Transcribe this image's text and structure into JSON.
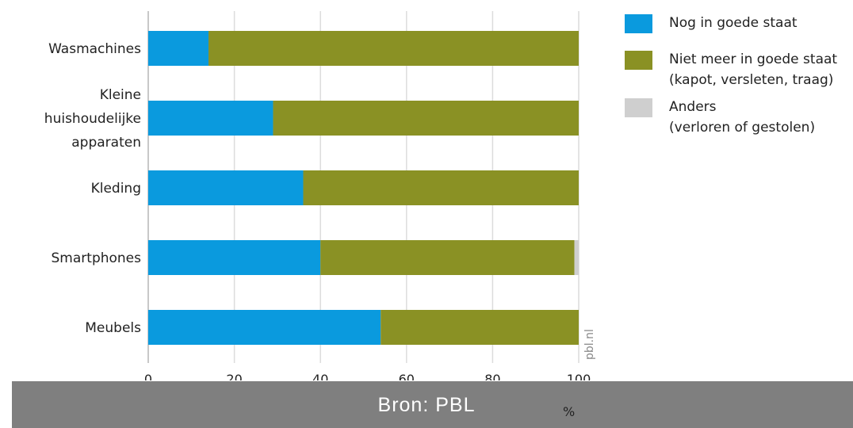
{
  "chart_data": {
    "type": "bar",
    "orientation": "horizontal",
    "stacked": true,
    "categories": [
      [
        "Wasmachines"
      ],
      [
        "Kleine",
        "huishoudelijke",
        "apparaten"
      ],
      [
        "Kleding"
      ],
      [
        "Smartphones"
      ],
      [
        "Meubels"
      ]
    ],
    "series": [
      {
        "name": "Nog in goede staat",
        "values": [
          14,
          29,
          36,
          40,
          54
        ],
        "color": "#0a9ade"
      },
      {
        "name": "Niet meer in goede staat (kapot, versleten, traag)",
        "values": [
          86,
          71,
          64,
          59,
          46
        ],
        "color": "#8a9124"
      },
      {
        "name": "Anders (verloren of gestolen)",
        "values": [
          0,
          0,
          0,
          1,
          0
        ],
        "color": "#cfcfcf"
      }
    ],
    "xlim": [
      0,
      100
    ],
    "xticks": [
      "0",
      "20",
      "40",
      "60",
      "80",
      "100"
    ],
    "xlabel": "%",
    "grid": "vertical",
    "legend_position": "right"
  },
  "legend": [
    {
      "lines": [
        "Nog in goede staat"
      ],
      "color": "#0a9ade"
    },
    {
      "lines": [
        "Niet meer in goede staat",
        "(kapot, versleten, traag)"
      ],
      "color": "#8a9124"
    },
    {
      "lines": [
        "Anders",
        "(verloren of gestolen)"
      ],
      "color": "#cfcfcf"
    }
  ],
  "watermark": "pbl.nl",
  "unit": "%",
  "source": "Bron: PBL"
}
